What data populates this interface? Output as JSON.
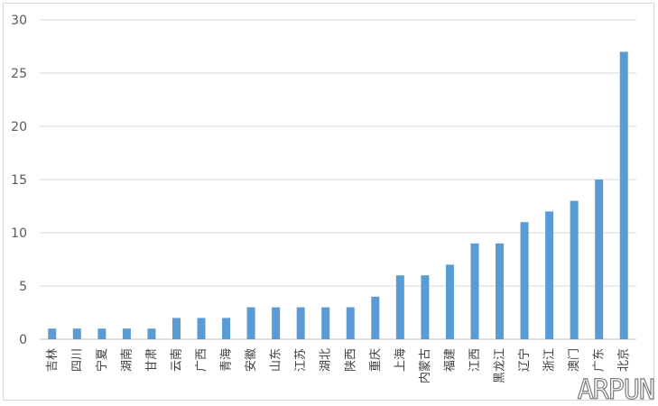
{
  "chart_data": {
    "type": "bar",
    "categories": [
      "吉林",
      "四川",
      "宁夏",
      "湖南",
      "甘肃",
      "云南",
      "广西",
      "青海",
      "安徽",
      "山东",
      "江苏",
      "湖北",
      "陕西",
      "重庆",
      "上海",
      "内蒙古",
      "福建",
      "江西",
      "黑龙江",
      "辽宁",
      "浙江",
      "澳门",
      "广东",
      "北京"
    ],
    "values": [
      1,
      1,
      1,
      1,
      1,
      2,
      2,
      2,
      3,
      3,
      3,
      3,
      3,
      4,
      6,
      6,
      7,
      9,
      9,
      11,
      12,
      13,
      15,
      27
    ],
    "yticks": [
      0,
      5,
      10,
      15,
      20,
      25,
      30
    ],
    "ylim": [
      0,
      30
    ],
    "grid": true,
    "bar_color": "#5b9bd5",
    "grid_color": "#d9d9d9"
  },
  "watermark": "ARPUN"
}
